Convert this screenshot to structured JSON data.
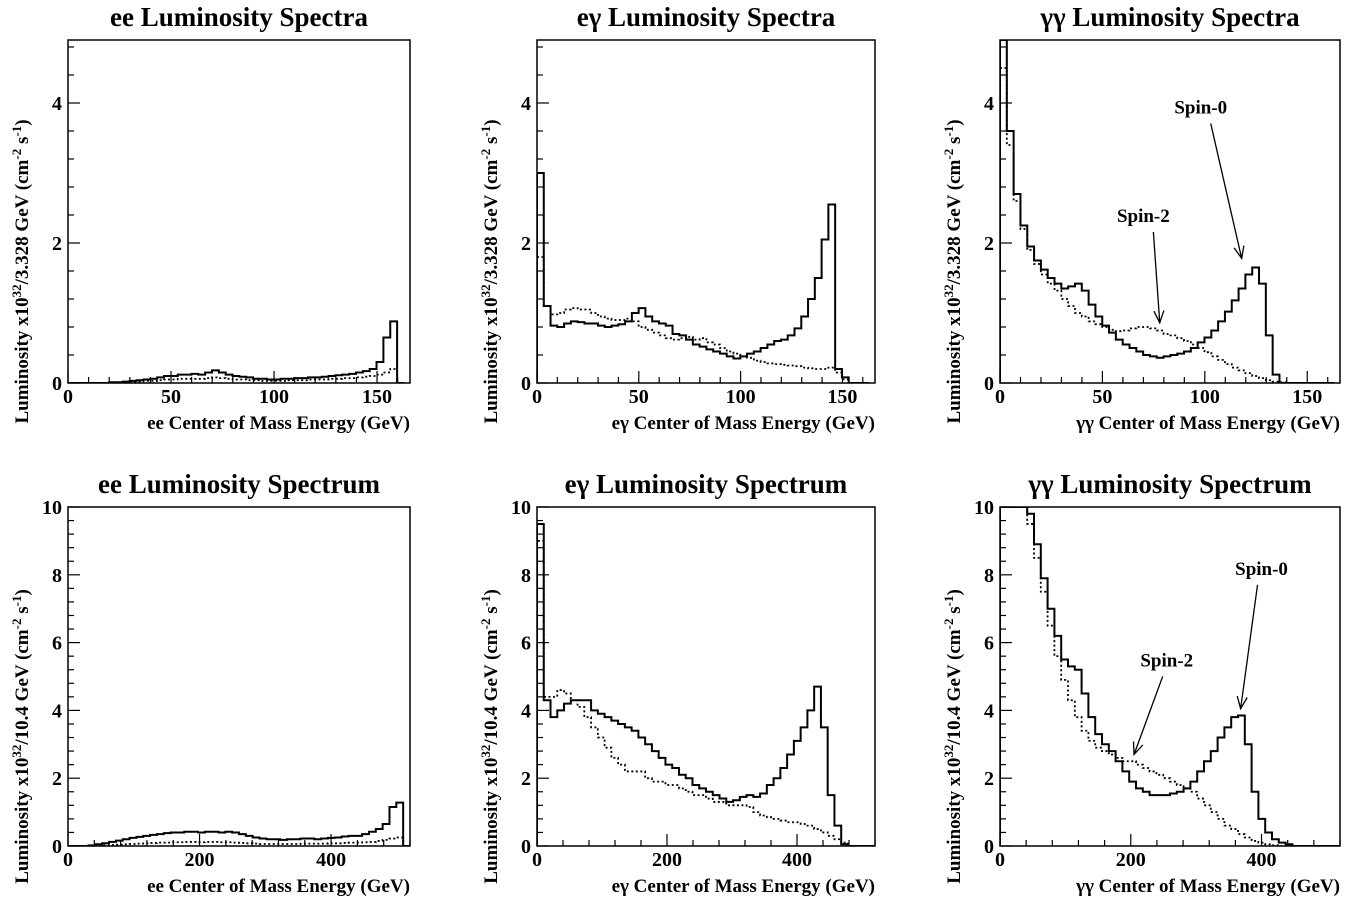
{
  "chart_data": [
    {
      "type": "line",
      "title": "ee Luminosity Spectra",
      "xlabel": "ee Center of Mass Energy (GeV)",
      "ylabel": "Luminosity x10^32/3.328 GeV (cm^-2 s^-1)",
      "xlim": [
        0,
        166
      ],
      "ylim": [
        0,
        4.9
      ],
      "xticks": [
        0,
        50,
        100,
        150
      ],
      "yticks": [
        0,
        2,
        4
      ],
      "bin_width": 3.328,
      "series": [
        {
          "style": "solid",
          "values": [
            0,
            0,
            0,
            0,
            0,
            0,
            0.01,
            0.01,
            0.02,
            0.03,
            0.04,
            0.05,
            0.06,
            0.08,
            0.1,
            0.1,
            0.12,
            0.12,
            0.13,
            0.12,
            0.15,
            0.18,
            0.15,
            0.12,
            0.1,
            0.09,
            0.08,
            0.06,
            0.06,
            0.05,
            0.05,
            0.06,
            0.06,
            0.07,
            0.07,
            0.08,
            0.08,
            0.09,
            0.1,
            0.11,
            0.12,
            0.13,
            0.15,
            0.17,
            0.2,
            0.3,
            0.65,
            0.88,
            0
          ]
        },
        {
          "style": "dotted",
          "values": [
            0,
            0,
            0,
            0,
            0,
            0,
            0,
            0.01,
            0.01,
            0.02,
            0.02,
            0.03,
            0.03,
            0.04,
            0.05,
            0.05,
            0.06,
            0.06,
            0.06,
            0.06,
            0.07,
            0.08,
            0.07,
            0.06,
            0.05,
            0.05,
            0.04,
            0.04,
            0.03,
            0.03,
            0.03,
            0.03,
            0.04,
            0.04,
            0.04,
            0.05,
            0.05,
            0.05,
            0.06,
            0.06,
            0.07,
            0.07,
            0.08,
            0.09,
            0.1,
            0.12,
            0.15,
            0.2,
            0
          ]
        }
      ],
      "annotations": []
    },
    {
      "type": "line",
      "title": "eγ Luminosity Spectra",
      "xlabel": "eγ Center of Mass Energy (GeV)",
      "ylabel": "Luminosity x10^32/3.328 GeV (cm^-2 s^-1)",
      "xlim": [
        0,
        166
      ],
      "ylim": [
        0,
        4.9
      ],
      "xticks": [
        0,
        50,
        100,
        150
      ],
      "yticks": [
        0,
        2,
        4
      ],
      "bin_width": 3.328,
      "series": [
        {
          "style": "solid",
          "values": [
            3.0,
            1.1,
            0.82,
            0.8,
            0.85,
            0.88,
            0.87,
            0.85,
            0.85,
            0.82,
            0.8,
            0.82,
            0.84,
            0.88,
            1.0,
            1.07,
            0.95,
            0.88,
            0.85,
            0.82,
            0.7,
            0.68,
            0.62,
            0.55,
            0.52,
            0.48,
            0.45,
            0.42,
            0.38,
            0.35,
            0.38,
            0.42,
            0.45,
            0.5,
            0.55,
            0.6,
            0.62,
            0.68,
            0.78,
            0.95,
            1.2,
            1.5,
            2.05,
            2.55,
            0.2,
            0.08,
            0,
            0,
            0
          ]
        },
        {
          "style": "dotted",
          "values": [
            1.8,
            1.1,
            0.98,
            1.0,
            1.05,
            1.07,
            1.05,
            1.05,
            1.0,
            0.95,
            0.92,
            0.9,
            0.9,
            0.92,
            0.88,
            0.8,
            0.76,
            0.72,
            0.68,
            0.64,
            0.62,
            0.64,
            0.66,
            0.62,
            0.64,
            0.58,
            0.55,
            0.5,
            0.45,
            0.42,
            0.38,
            0.36,
            0.32,
            0.3,
            0.28,
            0.27,
            0.26,
            0.25,
            0.24,
            0.22,
            0.21,
            0.2,
            0.2,
            0.22,
            0.15,
            0.05,
            0,
            0,
            0
          ]
        }
      ],
      "annotations": []
    },
    {
      "type": "line",
      "title": "γγ Luminosity Spectra",
      "xlabel": "γγ Center of Mass Energy (GeV)",
      "ylabel": "Luminosity x10^32/3.328 GeV (cm^-2 s^-1)",
      "xlim": [
        0,
        166
      ],
      "ylim": [
        0,
        4.9
      ],
      "xticks": [
        0,
        50,
        100,
        150
      ],
      "yticks": [
        0,
        2,
        4
      ],
      "bin_width": 3.328,
      "series": [
        {
          "style": "solid",
          "values": [
            4.9,
            3.6,
            2.7,
            2.25,
            1.95,
            1.75,
            1.62,
            1.5,
            1.42,
            1.35,
            1.38,
            1.42,
            1.32,
            1.12,
            0.95,
            0.82,
            0.72,
            0.62,
            0.55,
            0.5,
            0.45,
            0.4,
            0.38,
            0.36,
            0.38,
            0.4,
            0.42,
            0.45,
            0.5,
            0.58,
            0.65,
            0.75,
            0.88,
            1.02,
            1.18,
            1.35,
            1.55,
            1.65,
            1.42,
            0.68,
            0.12,
            0,
            0,
            0,
            0,
            0,
            0,
            0,
            0
          ]
        },
        {
          "style": "dotted",
          "values": [
            4.5,
            3.4,
            2.6,
            2.2,
            1.9,
            1.7,
            1.55,
            1.42,
            1.32,
            1.2,
            1.1,
            1.0,
            0.95,
            0.88,
            0.84,
            0.8,
            0.76,
            0.74,
            0.75,
            0.78,
            0.8,
            0.8,
            0.78,
            0.75,
            0.7,
            0.68,
            0.64,
            0.6,
            0.55,
            0.5,
            0.44,
            0.38,
            0.33,
            0.27,
            0.22,
            0.18,
            0.14,
            0.1,
            0.07,
            0.04,
            0.02,
            0.01,
            0,
            0,
            0,
            0,
            0,
            0,
            0
          ]
        }
      ],
      "annotations": [
        {
          "text": "Spin-0",
          "x": 98,
          "y": 3.85,
          "ax": 118,
          "ay": 1.78
        },
        {
          "text": "Spin-2",
          "x": 70,
          "y": 2.3,
          "ax": 78,
          "ay": 0.86
        }
      ]
    },
    {
      "type": "line",
      "title": "ee Luminosity Spectrum",
      "xlabel": "ee Center of Mass Energy (GeV)",
      "ylabel": "Luminosity x10^32/10.4 GeV (cm^-2 s^-1)",
      "xlim": [
        0,
        520
      ],
      "ylim": [
        0,
        10
      ],
      "xticks": [
        0,
        200,
        400
      ],
      "yticks": [
        0,
        2,
        4,
        6,
        8,
        10
      ],
      "bin_width": 10.4,
      "series": [
        {
          "style": "solid",
          "values": [
            0,
            0,
            0,
            0.02,
            0.05,
            0.08,
            0.12,
            0.16,
            0.2,
            0.24,
            0.27,
            0.3,
            0.33,
            0.35,
            0.38,
            0.4,
            0.4,
            0.42,
            0.42,
            0.4,
            0.42,
            0.42,
            0.4,
            0.42,
            0.4,
            0.35,
            0.3,
            0.25,
            0.22,
            0.2,
            0.2,
            0.18,
            0.2,
            0.2,
            0.22,
            0.22,
            0.2,
            0.22,
            0.24,
            0.25,
            0.28,
            0.3,
            0.3,
            0.35,
            0.42,
            0.5,
            0.65,
            1.15,
            1.28,
            0
          ]
        },
        {
          "style": "dotted",
          "values": [
            0,
            0,
            0,
            0,
            0.01,
            0.02,
            0.03,
            0.04,
            0.05,
            0.06,
            0.07,
            0.08,
            0.09,
            0.1,
            0.1,
            0.11,
            0.11,
            0.12,
            0.12,
            0.11,
            0.12,
            0.12,
            0.11,
            0.11,
            0.1,
            0.09,
            0.08,
            0.07,
            0.06,
            0.06,
            0.06,
            0.06,
            0.06,
            0.06,
            0.07,
            0.07,
            0.07,
            0.07,
            0.08,
            0.08,
            0.09,
            0.1,
            0.1,
            0.11,
            0.12,
            0.15,
            0.18,
            0.22,
            0.25,
            0
          ]
        }
      ],
      "annotations": []
    },
    {
      "type": "line",
      "title": "eγ Luminosity Spectrum",
      "xlabel": "eγ Center of Mass Energy (GeV)",
      "ylabel": "Luminosity x10^32/10.4 GeV (cm^-2 s^-1)",
      "xlim": [
        0,
        520
      ],
      "ylim": [
        0,
        10
      ],
      "xticks": [
        0,
        200,
        400
      ],
      "yticks": [
        0,
        2,
        4,
        6,
        8,
        10
      ],
      "bin_width": 10.4,
      "series": [
        {
          "style": "solid",
          "values": [
            9.5,
            4.3,
            3.8,
            4.0,
            4.2,
            4.3,
            4.3,
            4.3,
            4.0,
            3.9,
            3.8,
            3.7,
            3.6,
            3.5,
            3.4,
            3.2,
            3.0,
            2.8,
            2.6,
            2.4,
            2.3,
            2.1,
            2.0,
            1.8,
            1.7,
            1.6,
            1.5,
            1.4,
            1.3,
            1.35,
            1.45,
            1.5,
            1.45,
            1.55,
            1.8,
            2.0,
            2.3,
            2.7,
            3.1,
            3.5,
            4.0,
            4.7,
            3.5,
            1.5,
            0.6,
            0.05,
            0,
            0,
            0,
            0
          ]
        },
        {
          "style": "dotted",
          "values": [
            9.0,
            4.4,
            4.4,
            4.6,
            4.5,
            4.3,
            4.1,
            3.8,
            3.5,
            3.2,
            2.9,
            2.6,
            2.4,
            2.2,
            2.2,
            2.2,
            2.0,
            1.9,
            1.9,
            1.8,
            1.8,
            1.7,
            1.6,
            1.5,
            1.5,
            1.4,
            1.3,
            1.3,
            1.2,
            1.2,
            1.2,
            1.15,
            1.0,
            0.9,
            0.85,
            0.8,
            0.75,
            0.7,
            0.7,
            0.65,
            0.6,
            0.5,
            0.4,
            0.3,
            0.2,
            0.1,
            0,
            0,
            0,
            0
          ]
        }
      ],
      "annotations": []
    },
    {
      "type": "line",
      "title": "γγ Luminosity Spectrum",
      "xlabel": "γγ Center of Mass Energy (GeV)",
      "ylabel": "Luminosity x10^32/10.4 GeV (cm^-2 s^-1)",
      "xlim": [
        0,
        520
      ],
      "ylim": [
        0,
        10
      ],
      "xticks": [
        0,
        200,
        400
      ],
      "yticks": [
        0,
        2,
        4,
        6,
        8,
        10
      ],
      "bin_width": 10.4,
      "series": [
        {
          "style": "solid",
          "values": [
            10,
            10,
            10,
            10,
            9.8,
            8.9,
            7.9,
            7.0,
            6.2,
            5.5,
            5.3,
            5.2,
            4.5,
            3.8,
            3.3,
            3.0,
            2.8,
            2.5,
            2.2,
            1.9,
            1.7,
            1.6,
            1.5,
            1.5,
            1.5,
            1.55,
            1.6,
            1.7,
            1.9,
            2.2,
            2.5,
            2.8,
            3.2,
            3.5,
            3.8,
            3.85,
            3.0,
            1.6,
            0.8,
            0.4,
            0.2,
            0.1,
            0.05,
            0,
            0,
            0,
            0,
            0,
            0,
            0
          ]
        },
        {
          "style": "dotted",
          "values": [
            10,
            10,
            10,
            10,
            9.5,
            8.5,
            7.5,
            6.5,
            5.6,
            4.9,
            4.3,
            3.8,
            3.4,
            3.1,
            2.9,
            2.8,
            2.7,
            2.6,
            2.5,
            2.5,
            2.4,
            2.3,
            2.2,
            2.1,
            2.0,
            1.9,
            1.8,
            1.7,
            1.6,
            1.4,
            1.2,
            1.0,
            0.8,
            0.6,
            0.5,
            0.35,
            0.25,
            0.15,
            0.1,
            0.05,
            0.02,
            0,
            0,
            0,
            0,
            0,
            0,
            0,
            0,
            0
          ]
        }
      ],
      "annotations": [
        {
          "text": "Spin-0",
          "x": 400,
          "y": 8.0,
          "ax": 368,
          "ay": 4.05
        },
        {
          "text": "Spin-2",
          "x": 255,
          "y": 5.3,
          "ax": 205,
          "ay": 2.7
        }
      ]
    }
  ]
}
